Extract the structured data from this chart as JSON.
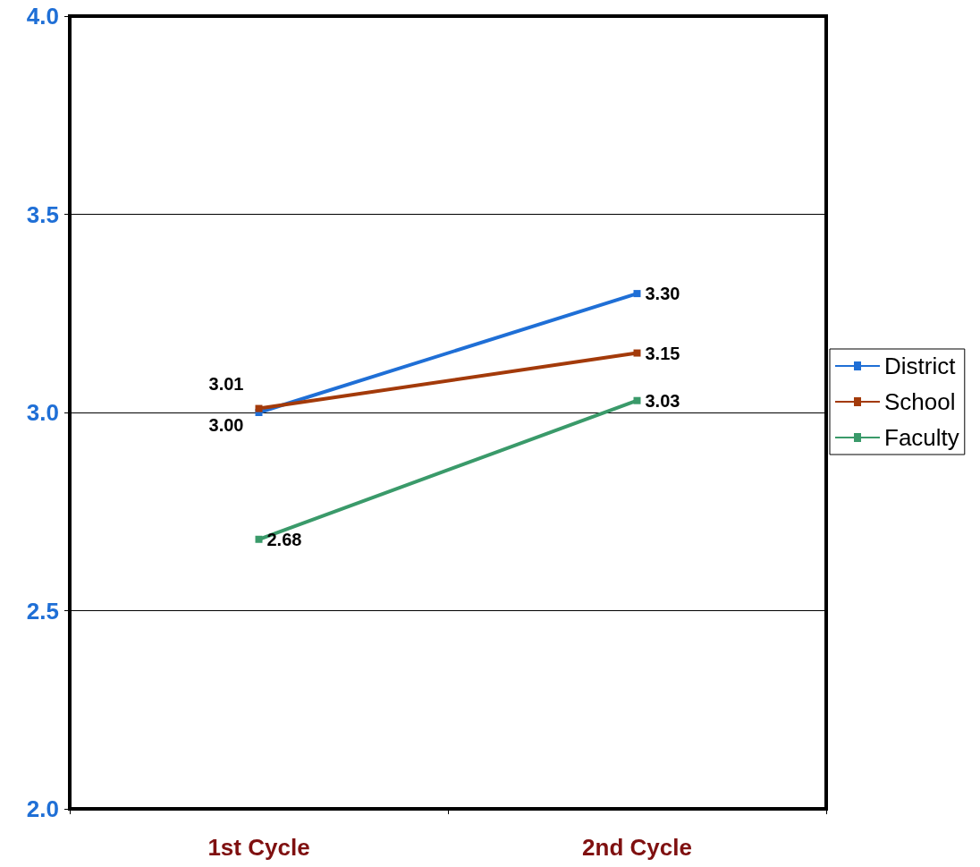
{
  "chart_data": {
    "type": "line",
    "categories": [
      "1st Cycle",
      "2nd Cycle"
    ],
    "series": [
      {
        "name": "District",
        "color": "#1f6fd6",
        "values": [
          3.0,
          3.3
        ],
        "value_labels": [
          "3.00",
          "3.30"
        ]
      },
      {
        "name": "School",
        "color": "#a33a0a",
        "values": [
          3.01,
          3.15
        ],
        "value_labels": [
          "3.01",
          "3.15"
        ]
      },
      {
        "name": "Faculty",
        "color": "#3a9a6a",
        "values": [
          2.68,
          3.03
        ],
        "value_labels": [
          "2.68",
          "3.03"
        ]
      }
    ],
    "ylim": [
      2,
      4
    ],
    "yticks": [
      {
        "value": 2,
        "label": "2.0"
      },
      {
        "value": 2.5,
        "label": "2.5"
      },
      {
        "value": 3,
        "label": "3.0"
      },
      {
        "value": 3.5,
        "label": "3.5"
      },
      {
        "value": 4,
        "label": "4.0"
      }
    ],
    "grid": "y",
    "legend": "right",
    "marker": "square",
    "line_style": "solid"
  }
}
